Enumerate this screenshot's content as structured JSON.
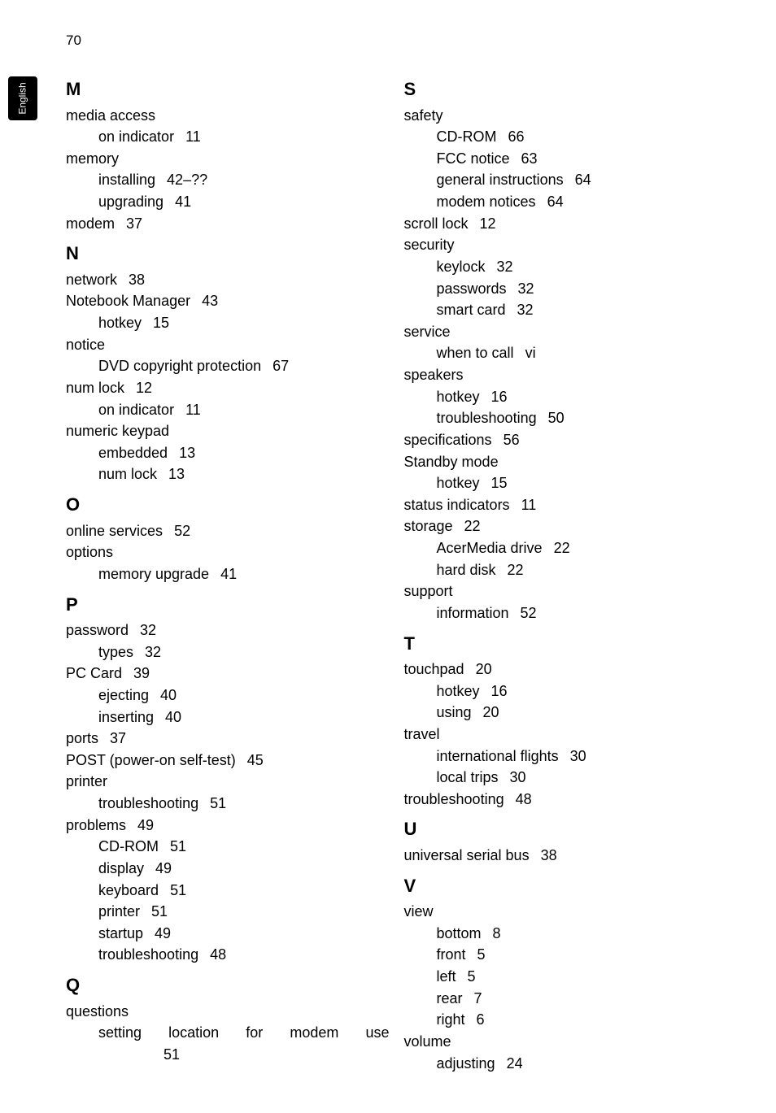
{
  "page_number": "70",
  "side_tab": "English",
  "left_column": [
    {
      "type": "heading",
      "text": "M"
    },
    {
      "type": "entry",
      "text": "media access"
    },
    {
      "type": "sub",
      "text": "on indicator",
      "page": "11"
    },
    {
      "type": "entry",
      "text": "memory"
    },
    {
      "type": "sub",
      "text": "installing",
      "page": "42–??"
    },
    {
      "type": "sub",
      "text": "upgrading",
      "page": "41"
    },
    {
      "type": "entry",
      "text": "modem",
      "page": "37"
    },
    {
      "type": "heading",
      "text": "N"
    },
    {
      "type": "entry",
      "text": "network",
      "page": "38"
    },
    {
      "type": "entry",
      "text": "Notebook Manager",
      "page": "43"
    },
    {
      "type": "sub",
      "text": "hotkey",
      "page": "15"
    },
    {
      "type": "entry",
      "text": "notice"
    },
    {
      "type": "sub",
      "text": "DVD copyright protection",
      "page": "67"
    },
    {
      "type": "entry",
      "text": "num lock",
      "page": "12"
    },
    {
      "type": "sub",
      "text": "on indicator",
      "page": "11"
    },
    {
      "type": "entry",
      "text": "numeric keypad"
    },
    {
      "type": "sub",
      "text": "embedded",
      "page": "13"
    },
    {
      "type": "sub",
      "text": "num lock",
      "page": "13"
    },
    {
      "type": "heading",
      "text": "O"
    },
    {
      "type": "entry",
      "text": "online services",
      "page": "52"
    },
    {
      "type": "entry",
      "text": "options"
    },
    {
      "type": "sub",
      "text": "memory upgrade",
      "page": "41"
    },
    {
      "type": "heading",
      "text": "P"
    },
    {
      "type": "entry",
      "text": "password",
      "page": "32"
    },
    {
      "type": "sub",
      "text": "types",
      "page": "32"
    },
    {
      "type": "entry",
      "text": "PC Card",
      "page": "39"
    },
    {
      "type": "sub",
      "text": "ejecting",
      "page": "40"
    },
    {
      "type": "sub",
      "text": "inserting",
      "page": "40"
    },
    {
      "type": "entry",
      "text": "ports",
      "page": "37"
    },
    {
      "type": "entry",
      "text": "POST (power-on self-test)",
      "page": "45"
    },
    {
      "type": "entry",
      "text": "printer"
    },
    {
      "type": "sub",
      "text": "troubleshooting",
      "page": "51"
    },
    {
      "type": "entry",
      "text": "problems",
      "page": "49"
    },
    {
      "type": "sub",
      "text": "CD-ROM",
      "page": "51"
    },
    {
      "type": "sub",
      "text": "display",
      "page": "49"
    },
    {
      "type": "sub",
      "text": "keyboard",
      "page": "51"
    },
    {
      "type": "sub",
      "text": "printer",
      "page": "51"
    },
    {
      "type": "sub",
      "text": "startup",
      "page": "49"
    },
    {
      "type": "sub",
      "text": "troubleshooting",
      "page": "48"
    },
    {
      "type": "heading",
      "text": "Q"
    },
    {
      "type": "entry",
      "text": "questions"
    },
    {
      "type": "sub-justified",
      "text": "setting location for modem use"
    },
    {
      "type": "subsub",
      "text": "51"
    }
  ],
  "right_column": [
    {
      "type": "heading",
      "text": "S"
    },
    {
      "type": "entry",
      "text": "safety"
    },
    {
      "type": "sub",
      "text": "CD-ROM",
      "page": "66"
    },
    {
      "type": "sub",
      "text": "FCC notice",
      "page": "63"
    },
    {
      "type": "sub",
      "text": "general instructions",
      "page": "64"
    },
    {
      "type": "sub",
      "text": "modem notices",
      "page": "64"
    },
    {
      "type": "entry",
      "text": "scroll lock",
      "page": "12"
    },
    {
      "type": "entry",
      "text": "security"
    },
    {
      "type": "sub",
      "text": "keylock",
      "page": "32"
    },
    {
      "type": "sub",
      "text": "passwords",
      "page": "32"
    },
    {
      "type": "sub",
      "text": "smart card",
      "page": "32"
    },
    {
      "type": "entry",
      "text": "service"
    },
    {
      "type": "sub",
      "text": "when to call",
      "page": "vi"
    },
    {
      "type": "entry",
      "text": "speakers"
    },
    {
      "type": "sub",
      "text": "hotkey",
      "page": "16"
    },
    {
      "type": "sub",
      "text": "troubleshooting",
      "page": "50"
    },
    {
      "type": "entry",
      "text": "specifications",
      "page": "56"
    },
    {
      "type": "entry",
      "text": "Standby mode"
    },
    {
      "type": "sub",
      "text": "hotkey",
      "page": "15"
    },
    {
      "type": "entry",
      "text": "status indicators",
      "page": "11"
    },
    {
      "type": "entry",
      "text": "storage",
      "page": "22"
    },
    {
      "type": "sub",
      "text": "AcerMedia drive",
      "page": "22"
    },
    {
      "type": "sub",
      "text": "hard disk",
      "page": "22"
    },
    {
      "type": "entry",
      "text": "support"
    },
    {
      "type": "sub",
      "text": "information",
      "page": "52"
    },
    {
      "type": "heading",
      "text": "T"
    },
    {
      "type": "entry",
      "text": "touchpad",
      "page": "20"
    },
    {
      "type": "sub",
      "text": "hotkey",
      "page": "16"
    },
    {
      "type": "sub",
      "text": "using",
      "page": "20"
    },
    {
      "type": "entry",
      "text": "travel"
    },
    {
      "type": "sub",
      "text": "international flights",
      "page": "30"
    },
    {
      "type": "sub",
      "text": "local trips",
      "page": "30"
    },
    {
      "type": "entry",
      "text": "troubleshooting",
      "page": "48"
    },
    {
      "type": "heading",
      "text": "U"
    },
    {
      "type": "entry",
      "text": "universal serial bus",
      "page": "38"
    },
    {
      "type": "heading",
      "text": "V"
    },
    {
      "type": "entry",
      "text": "view"
    },
    {
      "type": "sub",
      "text": "bottom",
      "page": "8"
    },
    {
      "type": "sub",
      "text": "front",
      "page": "5"
    },
    {
      "type": "sub",
      "text": "left",
      "page": "5"
    },
    {
      "type": "sub",
      "text": "rear",
      "page": "7"
    },
    {
      "type": "sub",
      "text": "right",
      "page": "6"
    },
    {
      "type": "entry",
      "text": "volume"
    },
    {
      "type": "sub",
      "text": "adjusting",
      "page": "24"
    }
  ]
}
